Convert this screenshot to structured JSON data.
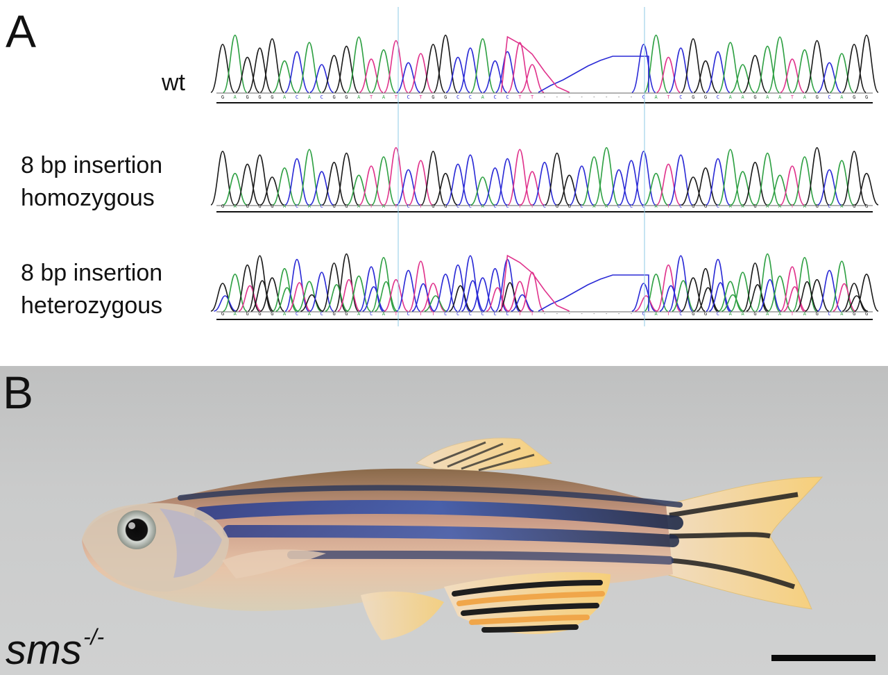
{
  "panel_a": {
    "letter": "A",
    "traces": [
      {
        "id": "wt",
        "label_lines": [
          "wt"
        ],
        "sequence": "GAGGGACACGGATATCTGGCCACCTT--------CATCGGCAAGAATAGCAGG"
      },
      {
        "id": "homozygous",
        "label_lines": [
          "8 bp insertion",
          "homozygous"
        ],
        "sequence": "GAGGGACACGGATATCTGGCCACCTTCGGCAACCCATCGGCAAGAATAGCAGG"
      },
      {
        "id": "heterozygous",
        "label_lines": [
          "8 bp insertion",
          "heterozygous"
        ],
        "sequence": "GAGGGACACGGACATCTTCCCCCCTT--------CATCGGCAAGAATAGCAGG"
      }
    ],
    "base_colors": {
      "A": "#2ea043",
      "C": "#2a2ad6",
      "G": "#1a1a1a",
      "T": "#e0338c"
    },
    "guide_line_color": "#8ecae6"
  },
  "panel_b": {
    "letter": "B",
    "genotype_label": "sms",
    "genotype_superscript": "-/-"
  }
}
